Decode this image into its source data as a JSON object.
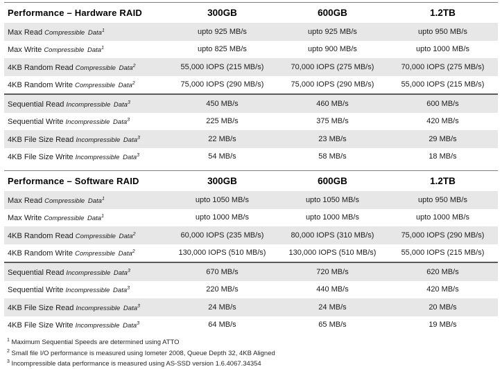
{
  "colors": {
    "stripe_row": "#e7e7e7",
    "section_divider": "#595959",
    "table_top_border": "#7f7f7f"
  },
  "tables": [
    {
      "title": "Performance – Hardware RAID",
      "columns": [
        "300GB",
        "600GB",
        "1.2TB"
      ],
      "sections": [
        {
          "rows": [
            {
              "label": "Max Read",
              "qualifier": "Compressible Data",
              "mark": "1",
              "values": [
                "upto 925 MB/s",
                "upto 925 MB/s",
                "upto 950 MB/s"
              ]
            },
            {
              "label": "Max Write",
              "qualifier": "Compressible Data",
              "mark": "1",
              "values": [
                "upto 825 MB/s",
                "upto 900 MB/s",
                "upto 1000 MB/s"
              ]
            },
            {
              "label": "4KB Random Read",
              "qualifier": "Compressible Data",
              "mark": "2",
              "values": [
                "55,000 IOPS (215 MB/s)",
                "70,000 IOPS (275 MB/s)",
                "70,000 IOPS (275 MB/s)"
              ]
            },
            {
              "label": "4KB Random Write",
              "qualifier": "Compressible Data",
              "mark": "2",
              "values": [
                "75,000 IOPS (290 MB/s)",
                "75,000 IOPS (290 MB/s)",
                "55,000 IOPS (215 MB/s)"
              ]
            }
          ]
        },
        {
          "rows": [
            {
              "label": "Sequential Read",
              "qualifier": "Incompressible Data",
              "mark": "3",
              "values": [
                "450 MB/s",
                "460 MB/s",
                "600 MB/s"
              ]
            },
            {
              "label": "Sequential Write",
              "qualifier": "Incompressible Data",
              "mark": "3",
              "values": [
                "225 MB/s",
                "375 MB/s",
                "420 MB/s"
              ]
            },
            {
              "label": "4KB File Size Read",
              "qualifier": "Incompressible Data",
              "mark": "3",
              "values": [
                "22 MB/s",
                "23 MB/s",
                "29 MB/s"
              ]
            },
            {
              "label": "4KB File Size Write",
              "qualifier": "Incompressible Data",
              "mark": "3",
              "values": [
                "54 MB/s",
                "58 MB/s",
                "18 MB/s"
              ]
            }
          ]
        }
      ]
    },
    {
      "title": "Performance – Software RAID",
      "columns": [
        "300GB",
        "600GB",
        "1.2TB"
      ],
      "sections": [
        {
          "rows": [
            {
              "label": "Max Read",
              "qualifier": "Compressible Data",
              "mark": "1",
              "values": [
                "upto 1050 MB/s",
                "upto 1050 MB/s",
                "upto 950 MB/s"
              ]
            },
            {
              "label": "Max Write",
              "qualifier": "Compressible Data",
              "mark": "1",
              "values": [
                "upto 1000 MB/s",
                "upto 1000 MB/s",
                "upto 1000 MB/s"
              ]
            },
            {
              "label": "4KB Random Read",
              "qualifier": "Compressible Data",
              "mark": "2",
              "values": [
                "60,000 IOPS (235 MB/s)",
                "80,000 IOPS (310 MB/s)",
                "75,000 IOPS (290 MB/s)"
              ]
            },
            {
              "label": "4KB Random Write",
              "qualifier": "Compressible Data",
              "mark": "2",
              "values": [
                "130,000 IOPS (510 MB/s)",
                "130,000 IOPS (510 MB/s)",
                "55,000 IOPS (215 MB/s)"
              ]
            }
          ]
        },
        {
          "rows": [
            {
              "label": "Sequential Read",
              "qualifier": "Incompressible Data",
              "mark": "3",
              "values": [
                "670 MB/s",
                "720 MB/s",
                "620 MB/s"
              ]
            },
            {
              "label": "Sequential Write",
              "qualifier": "Incompressible Data",
              "mark": "3",
              "values": [
                "220 MB/s",
                "440 MB/s",
                "420 MB/s"
              ]
            },
            {
              "label": "4KB File Size Read",
              "qualifier": "Incompressible Data",
              "mark": "3",
              "values": [
                "24 MB/s",
                "24 MB/s",
                "20 MB/s"
              ]
            },
            {
              "label": "4KB File Size Write",
              "qualifier": "Incompressible Data",
              "mark": "3",
              "values": [
                "64 MB/s",
                "65 MB/s",
                "19 MB/s"
              ]
            }
          ]
        }
      ]
    }
  ],
  "footnotes": [
    {
      "mark": "1",
      "text": "Maximum Sequential Speeds are determined using ATTO"
    },
    {
      "mark": "2",
      "text": "Small file I/O performance is measured using Iometer 2008, Queue Depth 32, 4KB Aligned"
    },
    {
      "mark": "3",
      "text": "Incompressible data performance is measured using AS-SSD version 1.6.4067.34354"
    }
  ]
}
